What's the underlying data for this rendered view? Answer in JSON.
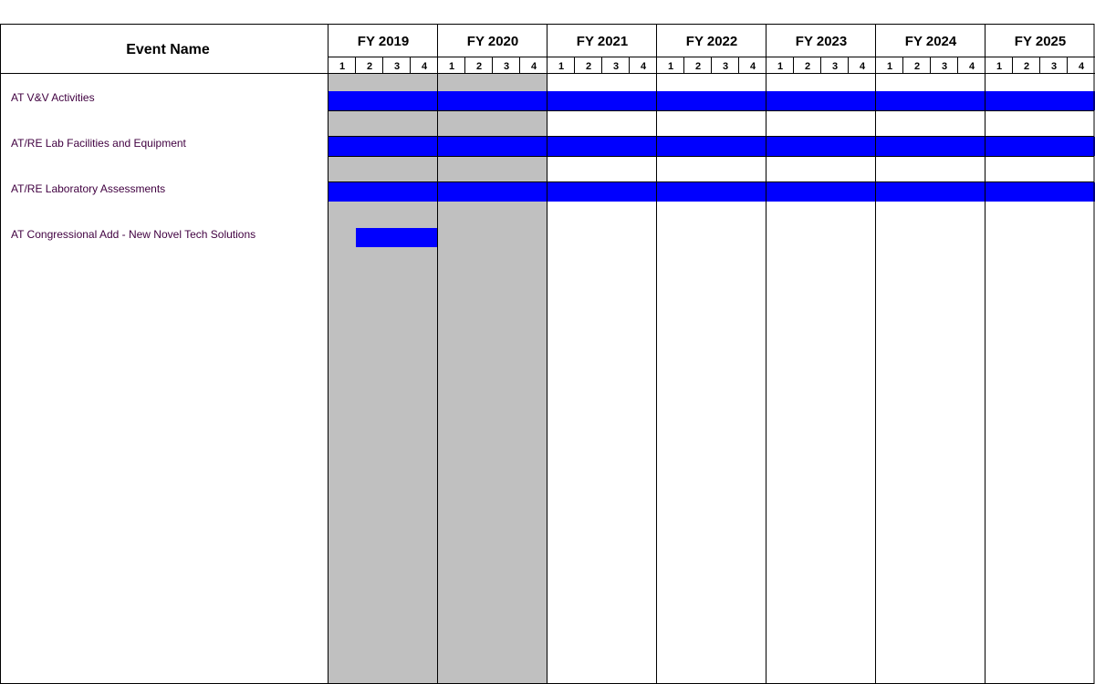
{
  "chart_data": {
    "type": "gantt",
    "header": {
      "event_column": "Event Name",
      "quarters": [
        "1",
        "2",
        "3",
        "4"
      ]
    },
    "fiscal_years": [
      "FY 2019",
      "FY 2020",
      "FY 2021",
      "FY 2022",
      "FY 2023",
      "FY 2024",
      "FY 2025"
    ],
    "shaded_fiscal_years": [
      "FY 2019",
      "FY 2020"
    ],
    "tasks": [
      {
        "name": "AT V&V Activities",
        "start": "FY 2019 Q1",
        "end": "FY 2025 Q4"
      },
      {
        "name": "AT/RE Lab Facilities and Equipment",
        "start": "FY 2019 Q1",
        "end": "FY 2025 Q4"
      },
      {
        "name": "AT/RE Laboratory Assessments",
        "start": "FY 2019 Q1",
        "end": "FY 2025 Q4"
      },
      {
        "name": "AT Congressional Add - New Novel Tech Solutions",
        "start": "FY 2019 Q2",
        "end": "FY 2019 Q4"
      }
    ]
  },
  "colors": {
    "bar": "#0000ff",
    "shade": "#c0c0c0",
    "grid": "#000000",
    "label": "#400040"
  }
}
